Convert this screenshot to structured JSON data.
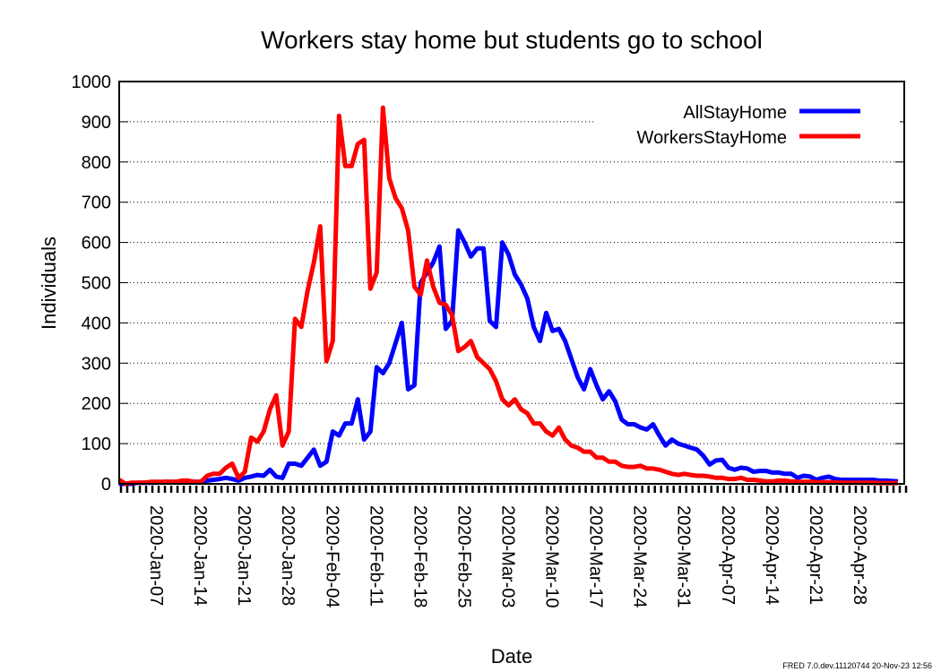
{
  "chart_data": {
    "type": "line",
    "title": "Workers stay home but students go to school",
    "xlabel": "Date",
    "ylabel": "Individuals",
    "ylim": [
      0,
      1000
    ],
    "yticks": [
      0,
      100,
      200,
      300,
      400,
      500,
      600,
      700,
      800,
      900,
      1000
    ],
    "x_start": "2020-Jan-01",
    "x_ticks": [
      "2020-Jan-07",
      "2020-Jan-14",
      "2020-Jan-21",
      "2020-Jan-28",
      "2020-Feb-04",
      "2020-Feb-11",
      "2020-Feb-18",
      "2020-Feb-25",
      "2020-Mar-03",
      "2020-Mar-10",
      "2020-Mar-17",
      "2020-Mar-24",
      "2020-Mar-31",
      "2020-Apr-07",
      "2020-Apr-14",
      "2020-Apr-21",
      "2020-Apr-28"
    ],
    "grid": "horizontal dotted",
    "legend_position": "top-right",
    "series": [
      {
        "name": "AllStayHome",
        "color": "#0000ff",
        "values": [
          0,
          0,
          0,
          3,
          3,
          3,
          3,
          5,
          5,
          5,
          5,
          5,
          5,
          5,
          8,
          10,
          12,
          15,
          12,
          8,
          15,
          18,
          22,
          20,
          35,
          18,
          15,
          50,
          50,
          45,
          65,
          85,
          45,
          55,
          130,
          120,
          150,
          150,
          210,
          110,
          130,
          290,
          275,
          300,
          350,
          400,
          235,
          245,
          500,
          525,
          550,
          590,
          385,
          405,
          630,
          600,
          565,
          585,
          585,
          405,
          390,
          600,
          570,
          520,
          495,
          460,
          390,
          355,
          425,
          380,
          385,
          355,
          310,
          265,
          235,
          285,
          245,
          210,
          230,
          205,
          160,
          148,
          148,
          140,
          135,
          148,
          120,
          95,
          110,
          100,
          95,
          90,
          85,
          70,
          48,
          58,
          60,
          40,
          35,
          40,
          38,
          30,
          32,
          32,
          28,
          28,
          25,
          25,
          15,
          20,
          18,
          10,
          15,
          18,
          12,
          10,
          10,
          10,
          10,
          10,
          10,
          8,
          8,
          7,
          6
        ]
      },
      {
        "name": "WorkersStayHome",
        "color": "#ff0000",
        "values": [
          10,
          0,
          3,
          3,
          3,
          5,
          5,
          5,
          5,
          5,
          8,
          8,
          5,
          5,
          20,
          25,
          25,
          40,
          50,
          15,
          30,
          115,
          105,
          130,
          185,
          220,
          95,
          130,
          410,
          390,
          480,
          550,
          640,
          305,
          355,
          915,
          790,
          790,
          845,
          855,
          485,
          525,
          935,
          760,
          710,
          685,
          630,
          490,
          470,
          555,
          490,
          450,
          445,
          420,
          330,
          340,
          355,
          315,
          300,
          285,
          255,
          210,
          195,
          210,
          185,
          175,
          150,
          150,
          130,
          120,
          140,
          110,
          95,
          90,
          80,
          80,
          65,
          65,
          55,
          55,
          45,
          42,
          42,
          45,
          38,
          38,
          35,
          30,
          25,
          22,
          25,
          22,
          20,
          20,
          18,
          15,
          15,
          12,
          12,
          15,
          10,
          10,
          8,
          6,
          6,
          8,
          8,
          6,
          5,
          5,
          5,
          4,
          4,
          4,
          4,
          3,
          3,
          3,
          3,
          3,
          3,
          2,
          2,
          2,
          2
        ]
      }
    ]
  },
  "footer": "FRED 7.0.dev.11120744 20-Nov-23 12:56"
}
